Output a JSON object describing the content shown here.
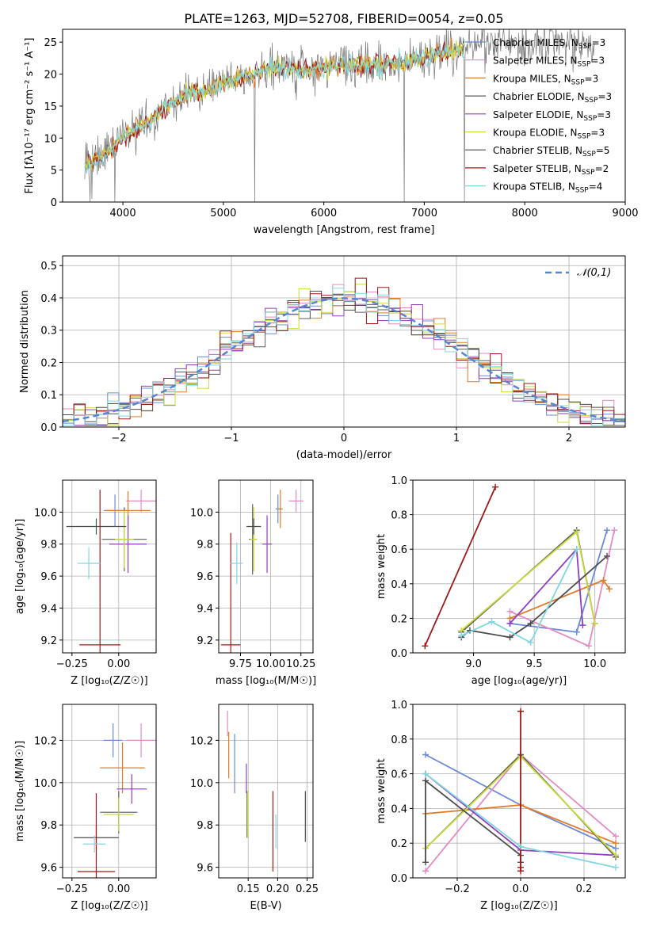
{
  "title": "PLATE=1263, MJD=52708, FIBERID=0054, z=0.05",
  "series": [
    {
      "name": "Chabrier MILES",
      "nssp": "3",
      "color": "#6a8ad6"
    },
    {
      "name": "Salpeter MILES",
      "nssp": "3",
      "color": "#e58ac3"
    },
    {
      "name": "Kroupa MILES",
      "nssp": "3",
      "color": "#e07b28"
    },
    {
      "name": "Chabrier ELODIE",
      "nssp": "3",
      "color": "#5e5e5e"
    },
    {
      "name": "Salpeter ELODIE",
      "nssp": "3",
      "color": "#8f3ec0"
    },
    {
      "name": "Kroupa ELODIE",
      "nssp": "3",
      "color": "#c9dc3c"
    },
    {
      "name": "Chabrier STELIB",
      "nssp": "5",
      "color": "#4d4d4d"
    },
    {
      "name": "Salpeter STELIB",
      "nssp": "2",
      "color": "#a01818"
    },
    {
      "name": "Kroupa STELIB",
      "nssp": "4",
      "color": "#7fd7df"
    }
  ],
  "chart_data": [
    {
      "id": "spectrum",
      "type": "line",
      "xlabel": "wavelength [Angstrom, rest frame]",
      "ylabel": "Flux [fλ10⁻¹⁷ erg cm⁻² s⁻¹ A⁻¹]",
      "xlim": [
        3400,
        9000
      ],
      "ylim": [
        0,
        27
      ],
      "xticks": [
        4000,
        5000,
        6000,
        7000,
        8000,
        9000
      ],
      "yticks": [
        0,
        5,
        10,
        15,
        20,
        25
      ],
      "legend_position": "right",
      "continuum": {
        "x": [
          3620,
          3700,
          3800,
          3900,
          4000,
          4100,
          4200,
          4300,
          4400,
          4500,
          4600,
          4700,
          4800,
          4900,
          5000,
          5200,
          5400,
          5600,
          5800,
          6000,
          6200,
          6400,
          6600,
          6800,
          7000,
          7200,
          7400
        ],
        "y": [
          5.5,
          6.5,
          7,
          8.5,
          10,
          11,
          12,
          13,
          14.5,
          15.5,
          16.5,
          17.5,
          17,
          18,
          18.5,
          19.5,
          20.5,
          21,
          20.5,
          21,
          21.5,
          21.5,
          21.5,
          22,
          22.5,
          23.5,
          24
        ]
      },
      "obs_continuum": {
        "x": [
          3620,
          3700,
          3800,
          3900,
          4000,
          4100,
          4200,
          4300,
          4400,
          4500,
          4600,
          4700,
          4800,
          4900,
          5000,
          5200,
          5400,
          5600,
          5800,
          6000,
          6200,
          6400,
          6600,
          6800,
          7000,
          7200,
          7400,
          7600,
          7800,
          8000,
          8200,
          8400,
          8600,
          8700
        ],
        "y": [
          5.5,
          6.5,
          7,
          8.5,
          10,
          11,
          12,
          13,
          14.5,
          15.5,
          16.5,
          17.5,
          17,
          18,
          18.5,
          19.5,
          20.5,
          21,
          20.5,
          21,
          21.5,
          21.5,
          21.5,
          22,
          22.5,
          23.5,
          24,
          25,
          25,
          24.5,
          25,
          25,
          25,
          24
        ]
      },
      "dips": [
        {
          "x": 3920,
          "y": 0
        },
        {
          "x": 5310,
          "y": 0
        },
        {
          "x": 6800,
          "y": 0
        },
        {
          "x": 7400,
          "y": 0
        }
      ]
    },
    {
      "id": "residuals",
      "type": "histogram",
      "xlabel": "(data-model)/error",
      "ylabel": "Normed distribution",
      "xlim": [
        -2.5,
        2.5
      ],
      "ylim": [
        0,
        0.53
      ],
      "xticks": [
        -2,
        -1,
        0,
        1,
        2
      ],
      "yticks": [
        0.0,
        0.1,
        0.2,
        0.3,
        0.4,
        0.5
      ],
      "reference_label": "𝒩(0,1)",
      "reference_color": "#5a84d0",
      "bin_width": 0.1
    },
    {
      "id": "age_vs_Z",
      "type": "errorbar",
      "xlabel": "Z [log₁₀(Z/Z☉)]",
      "ylabel": "age  [log₁₀(age/yr)]",
      "xlim": [
        -0.3,
        0.2
      ],
      "ylim": [
        9.12,
        10.2
      ],
      "xticks": [
        -0.25,
        0.0,
        0.25
      ],
      "yticks": [
        9.2,
        9.4,
        9.6,
        9.8,
        10.0
      ],
      "points": [
        {
          "s": 0,
          "x": -0.02,
          "y": 10.01,
          "xe": 0.06,
          "ye": 0.1
        },
        {
          "s": 1,
          "x": 0.12,
          "y": 10.07,
          "xe": 0.08,
          "ye": 0.07
        },
        {
          "s": 2,
          "x": 0.05,
          "y": 10.01,
          "xe": 0.12,
          "ye": 0.12
        },
        {
          "s": 3,
          "x": 0.03,
          "y": 9.83,
          "xe": 0.12,
          "ye": 0.2
        },
        {
          "s": 4,
          "x": 0.05,
          "y": 9.8,
          "xe": 0.1,
          "ye": 0.18
        },
        {
          "s": 5,
          "x": 0.03,
          "y": 9.83,
          "xe": 0.05,
          "ye": 0.18
        },
        {
          "s": 6,
          "x": -0.12,
          "y": 9.91,
          "xe": 0.16,
          "ye": 0.05
        },
        {
          "s": 7,
          "x": -0.1,
          "y": 9.17,
          "xe": 0.11,
          "ye": 0.97
        },
        {
          "s": 8,
          "x": -0.16,
          "y": 9.68,
          "xe": 0.06,
          "ye": 0.1
        }
      ]
    },
    {
      "id": "age_vs_mass",
      "type": "errorbar",
      "xlabel": "mass [log₁₀(M/M☉)]",
      "ylabel": "",
      "xlim": [
        9.57,
        10.35
      ],
      "ylim": [
        9.12,
        10.2
      ],
      "xticks": [
        9.75,
        10.0,
        10.25
      ],
      "yticks": [
        9.2,
        9.4,
        9.6,
        9.8,
        10.0
      ],
      "points": [
        {
          "s": 0,
          "x": 10.06,
          "y": 10.02,
          "xe": 0.02,
          "ye": 0.09
        },
        {
          "s": 1,
          "x": 10.21,
          "y": 10.07,
          "xe": 0.06,
          "ye": 0.07
        },
        {
          "s": 2,
          "x": 10.08,
          "y": 10.02,
          "xe": 0.02,
          "ye": 0.12
        },
        {
          "s": 3,
          "x": 9.85,
          "y": 9.83,
          "xe": 0.03,
          "ye": 0.22
        },
        {
          "s": 4,
          "x": 9.97,
          "y": 9.8,
          "xe": 0.04,
          "ye": 0.18
        },
        {
          "s": 5,
          "x": 9.86,
          "y": 9.83,
          "xe": 0.03,
          "ye": 0.2
        },
        {
          "s": 6,
          "x": 9.86,
          "y": 9.91,
          "xe": 0.06,
          "ye": 0.05
        },
        {
          "s": 7,
          "x": 9.67,
          "y": 9.17,
          "xe": 0.08,
          "ye": 0.7
        },
        {
          "s": 8,
          "x": 9.72,
          "y": 9.68,
          "xe": 0.05,
          "ye": 0.13
        }
      ]
    },
    {
      "id": "massweight_vs_age",
      "type": "line",
      "xlabel": "age  [log₁₀(age/yr)]",
      "ylabel": "mass weight",
      "xlim": [
        8.5,
        10.25
      ],
      "ylim": [
        0,
        1.0
      ],
      "xticks": [
        9.0,
        9.5,
        10.0
      ],
      "yticks": [
        0.0,
        0.2,
        0.4,
        0.6,
        0.8,
        1.0
      ],
      "lines": [
        {
          "s": 0,
          "x": [
            9.3,
            9.85,
            10.1
          ],
          "y": [
            0.17,
            0.12,
            0.71
          ]
        },
        {
          "s": 1,
          "x": [
            9.3,
            9.95,
            10.16
          ],
          "y": [
            0.24,
            0.04,
            0.71
          ]
        },
        {
          "s": 2,
          "x": [
            9.3,
            10.07,
            10.12
          ],
          "y": [
            0.2,
            0.42,
            0.37
          ]
        },
        {
          "s": 3,
          "x": [
            8.9,
            9.85,
            10.0
          ],
          "y": [
            0.12,
            0.71,
            0.17
          ]
        },
        {
          "s": 4,
          "x": [
            9.3,
            9.85,
            9.9
          ],
          "y": [
            0.17,
            0.6,
            0.16
          ]
        },
        {
          "s": 5,
          "x": [
            8.9,
            9.85,
            10.0
          ],
          "y": [
            0.13,
            0.7,
            0.17
          ]
        },
        {
          "s": 6,
          "x": [
            8.9,
            8.97,
            9.3,
            9.47,
            10.1
          ],
          "y": [
            0.09,
            0.13,
            0.09,
            0.17,
            0.56
          ]
        },
        {
          "s": 7,
          "x": [
            8.6,
            9.18
          ],
          "y": [
            0.04,
            0.96
          ]
        },
        {
          "s": 8,
          "x": [
            8.9,
            9.15,
            9.47,
            9.85
          ],
          "y": [
            0.1,
            0.18,
            0.06,
            0.6
          ]
        }
      ]
    },
    {
      "id": "mass_vs_Z",
      "type": "errorbar",
      "xlabel": "Z [log₁₀(Z/Z☉)]",
      "ylabel": "mass [log₁₀(M/M☉)]",
      "xlim": [
        -0.3,
        0.2
      ],
      "ylim": [
        9.55,
        10.37
      ],
      "xticks": [
        -0.25,
        0.0,
        0.25
      ],
      "yticks": [
        9.6,
        9.8,
        10.0,
        10.2
      ],
      "points": [
        {
          "s": 0,
          "x": -0.03,
          "y": 10.2,
          "xe": 0.05,
          "ye": 0.08
        },
        {
          "s": 1,
          "x": 0.12,
          "y": 10.2,
          "xe": 0.08,
          "ye": 0.08
        },
        {
          "s": 2,
          "x": 0.02,
          "y": 10.07,
          "xe": 0.12,
          "ye": 0.12
        },
        {
          "s": 3,
          "x": 0.0,
          "y": 9.86,
          "xe": 0.1,
          "ye": 0.1
        },
        {
          "s": 4,
          "x": 0.07,
          "y": 9.97,
          "xe": 0.08,
          "ye": 0.07
        },
        {
          "s": 5,
          "x": 0.0,
          "y": 9.85,
          "xe": 0.08,
          "ye": 0.08
        },
        {
          "s": 6,
          "x": -0.12,
          "y": 9.74,
          "xe": 0.12,
          "ye": 0.06
        },
        {
          "s": 7,
          "x": -0.12,
          "y": 9.58,
          "xe": 0.1,
          "ye": 0.37
        },
        {
          "s": 8,
          "x": -0.13,
          "y": 9.71,
          "xe": 0.06,
          "ye": 0.04
        }
      ]
    },
    {
      "id": "mass_vs_ebv",
      "type": "errorbar",
      "xlabel": "E(B-V)",
      "ylabel": "",
      "xlim": [
        0.1,
        0.26
      ],
      "ylim": [
        9.55,
        10.37
      ],
      "xticks": [
        0.15,
        0.2,
        0.25
      ],
      "yticks": [
        9.6,
        9.8,
        10.0,
        10.2
      ],
      "points": [
        {
          "s": 0,
          "x": 0.127,
          "y": 10.09,
          "xe": 0,
          "ye": 0.14
        },
        {
          "s": 1,
          "x": 0.115,
          "y": 10.28,
          "xe": 0,
          "ye": 0.06
        },
        {
          "s": 2,
          "x": 0.117,
          "y": 10.13,
          "xe": 0,
          "ye": 0.11
        },
        {
          "s": 3,
          "x": 0.148,
          "y": 9.85,
          "xe": 0,
          "ye": 0.11
        },
        {
          "s": 4,
          "x": 0.147,
          "y": 10.02,
          "xe": 0,
          "ye": 0.07
        },
        {
          "s": 5,
          "x": 0.149,
          "y": 9.85,
          "xe": 0,
          "ye": 0.11
        },
        {
          "s": 6,
          "x": 0.247,
          "y": 9.84,
          "xe": 0,
          "ye": 0.12
        },
        {
          "s": 7,
          "x": 0.192,
          "y": 9.77,
          "xe": 0,
          "ye": 0.19
        },
        {
          "s": 8,
          "x": 0.197,
          "y": 9.77,
          "xe": 0,
          "ye": 0.08
        }
      ]
    },
    {
      "id": "massweight_vs_Z",
      "type": "line",
      "xlabel": "Z [log₁₀(Z/Z☉)]",
      "ylabel": "mass weight",
      "xlim": [
        -0.34,
        0.33
      ],
      "ylim": [
        0,
        1.0
      ],
      "xticks": [
        -0.2,
        0.0,
        0.2
      ],
      "yticks": [
        0.0,
        0.2,
        0.4,
        0.6,
        0.8,
        1.0
      ],
      "lines": [
        {
          "s": 0,
          "x": [
            -0.3,
            0.0,
            0.3
          ],
          "y": [
            0.71,
            0.42,
            0.17
          ]
        },
        {
          "s": 1,
          "x": [
            -0.3,
            0.0,
            0.3
          ],
          "y": [
            0.04,
            0.71,
            0.24
          ]
        },
        {
          "s": 2,
          "x": [
            -0.3,
            0.0,
            0.3
          ],
          "y": [
            0.37,
            0.42,
            0.2
          ]
        },
        {
          "s": 3,
          "x": [
            -0.3,
            0.0,
            0.3
          ],
          "y": [
            0.17,
            0.71,
            0.12
          ]
        },
        {
          "s": 4,
          "x": [
            -0.3,
            0.0,
            0.3
          ],
          "y": [
            0.6,
            0.16,
            0.13
          ]
        },
        {
          "s": 5,
          "x": [
            -0.3,
            0.0,
            0.3
          ],
          "y": [
            0.17,
            0.7,
            0.13
          ]
        },
        {
          "s": 6,
          "x": [
            -0.3,
            -0.3,
            0.0,
            0.0
          ],
          "y": [
            0.09,
            0.56,
            0.13,
            0.09
          ]
        },
        {
          "s": 7,
          "x": [
            0.0,
            0.0,
            0.0
          ],
          "y": [
            0.04,
            0.96,
            0.06
          ]
        },
        {
          "s": 8,
          "x": [
            -0.3,
            0.0,
            0.3
          ],
          "y": [
            0.6,
            0.18,
            0.06
          ]
        }
      ]
    }
  ]
}
